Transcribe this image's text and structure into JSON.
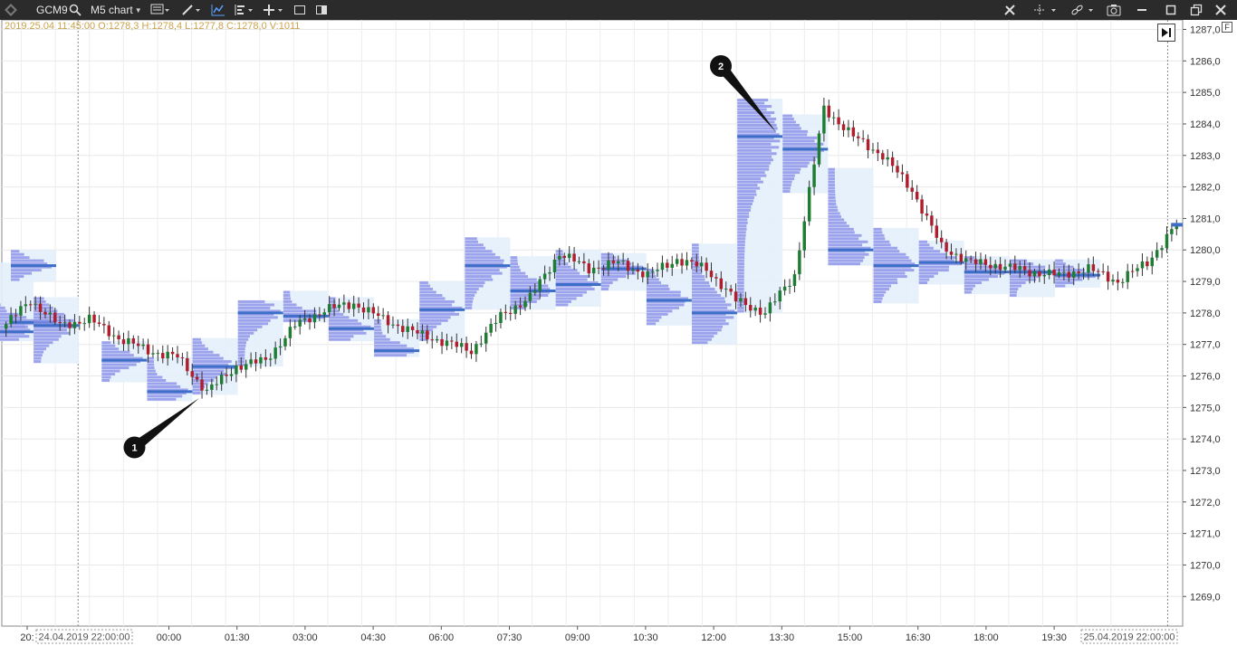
{
  "toolbar": {
    "symbol": "GCM9",
    "chart_type": "M5 chart",
    "icons": [
      "app-logo-icon",
      "search-icon",
      "template-icon",
      "pencil-icon",
      "indicator-icon",
      "cluster-icon",
      "plus-icon",
      "window-icon",
      "layout-icon",
      "tools-icon",
      "crosshair-icon",
      "link-icon",
      "camera-icon",
      "minimize-icon",
      "maximize-icon",
      "close-icon"
    ]
  },
  "ohlc_label": "2019.25.04 11:45:00 O:1278,3 H:1278,4 L:1277,8 C:1278,0 V:1011",
  "markers": [
    {
      "label": "1"
    },
    {
      "label": "2"
    }
  ],
  "colors": {
    "up": "#1e7d32",
    "down": "#b01e2d",
    "profile": "#8e94e8",
    "poc": "#3d6fc8",
    "zone": "#e3f0fb"
  },
  "chart_data": {
    "type": "candlestick",
    "title": "",
    "ylim": [
      1268.2,
      1287.2
    ],
    "y_ticks": [
      "1287,0",
      "1286,0",
      "1285,0",
      "1284,0",
      "1283,0",
      "1282,0",
      "1281,0",
      "1280,0",
      "1279,0",
      "1278,0",
      "1277,0",
      "1276,0",
      "1275,0",
      "1274,0",
      "1273,0",
      "1272,0",
      "1271,0",
      "1270,0",
      "1269,0"
    ],
    "x_ticks": [
      "20:",
      "00:00",
      "01:30",
      "03:00",
      "04:30",
      "06:00",
      "07:30",
      "09:00",
      "10:30",
      "12:00",
      "13:30",
      "15:00",
      "16:30",
      "18:00",
      "19:30"
    ],
    "session_labels": [
      "24.04.2019 22:00:00",
      "25.04.2019 22:00:00"
    ],
    "last_price": "1280,8",
    "price_path": [
      1277.5,
      1278.4,
      1277.6,
      1277.8,
      1277.2,
      1276.8,
      1276.6,
      1275.5,
      1276.3,
      1276.5,
      1277.6,
      1278.1,
      1278.3,
      1277.8,
      1277.4,
      1277.1,
      1276.8,
      1277.9,
      1278.5,
      1279.9,
      1279.4,
      1279.6,
      1279.2,
      1279.7,
      1279.4,
      1278.4,
      1278.0,
      1279.2,
      1284.5,
      1283.6,
      1283.0,
      1281.9,
      1280.1,
      1279.6,
      1279.5,
      1279.3,
      1279.2,
      1279.4,
      1279.0,
      1279.6,
      1280.8
    ],
    "volume_profiles": [
      {
        "start": "20:00",
        "low": 1277.1,
        "high": 1279.6,
        "poc": 1277.4
      },
      {
        "start": "20:30",
        "low": 1277.5,
        "high": 1278.0,
        "poc": 1277.7
      },
      {
        "start": "21:00",
        "low": 1276.4,
        "high": 1278.5,
        "poc": 1277.6
      },
      {
        "start": "22:30",
        "low": 1275.8,
        "high": 1277.1,
        "poc": 1276.5
      },
      {
        "start": "23:30",
        "low": 1275.2,
        "high": 1276.6,
        "poc": 1275.5
      },
      {
        "start": "00:30",
        "low": 1275.4,
        "high": 1277.2,
        "poc": 1276.3
      },
      {
        "start": "01:30",
        "low": 1276.3,
        "high": 1278.4,
        "poc": 1278.0
      },
      {
        "start": "02:30",
        "low": 1277.7,
        "high": 1278.7,
        "poc": 1277.9
      },
      {
        "start": "03:30",
        "low": 1277.1,
        "high": 1278.5,
        "poc": 1277.5
      },
      {
        "start": "04:30",
        "low": 1276.6,
        "high": 1277.8,
        "poc": 1276.8
      },
      {
        "start": "05:30",
        "low": 1277.1,
        "high": 1279.0,
        "poc": 1278.1
      },
      {
        "start": "06:30",
        "low": 1278.1,
        "high": 1280.4,
        "poc": 1279.5
      },
      {
        "start": "07:30",
        "low": 1278.1,
        "high": 1279.8,
        "poc": 1278.7
      },
      {
        "start": "08:30",
        "low": 1278.2,
        "high": 1280.0,
        "poc": 1278.9
      },
      {
        "start": "09:30",
        "low": 1278.7,
        "high": 1279.9,
        "poc": 1279.4
      },
      {
        "start": "10:30",
        "low": 1277.6,
        "high": 1279.4,
        "poc": 1278.4
      },
      {
        "start": "11:30",
        "low": 1277.0,
        "high": 1280.2,
        "poc": 1278.0
      },
      {
        "start": "12:30",
        "low": 1278.0,
        "high": 1284.8,
        "poc": 1283.6
      },
      {
        "start": "13:30",
        "low": 1281.8,
        "high": 1284.3,
        "poc": 1283.2
      },
      {
        "start": "14:30",
        "low": 1279.5,
        "high": 1282.6,
        "poc": 1280.0
      },
      {
        "start": "15:30",
        "low": 1278.3,
        "high": 1280.7,
        "poc": 1279.5
      },
      {
        "start": "16:30",
        "low": 1278.9,
        "high": 1280.3,
        "poc": 1279.6
      },
      {
        "start": "17:30",
        "low": 1278.6,
        "high": 1279.8,
        "poc": 1279.3
      },
      {
        "start": "18:30",
        "low": 1278.5,
        "high": 1279.7,
        "poc": 1279.3
      },
      {
        "start": "19:30",
        "low": 1278.8,
        "high": 1279.7,
        "poc": 1279.2
      },
      {
        "start": "20:30",
        "low": 1279.0,
        "high": 1280.0,
        "poc": 1279.5
      }
    ]
  }
}
